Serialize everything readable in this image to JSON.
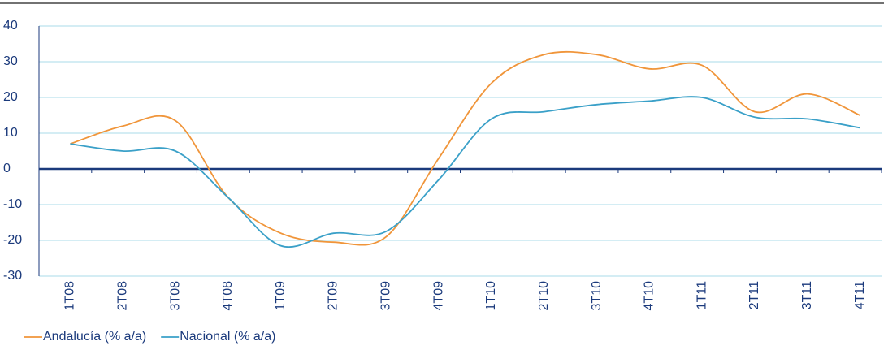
{
  "chart_data": {
    "type": "line",
    "categories": [
      "1T08",
      "2T08",
      "3T08",
      "4T08",
      "1T09",
      "2T09",
      "3T09",
      "4T09",
      "1T10",
      "2T10",
      "3T10",
      "4T10",
      "1T11",
      "2T11",
      "3T11",
      "4T11"
    ],
    "series": [
      {
        "name": "Andalucía (% a/a)",
        "color": "#f0953a",
        "values": [
          7,
          12,
          13.5,
          -8,
          -18,
          -20.5,
          -19,
          3,
          24,
          32,
          32,
          28,
          29,
          16,
          21,
          15
        ]
      },
      {
        "name": "Nacional (% a/a)",
        "color": "#3aa0c8",
        "values": [
          7,
          5,
          5,
          -8,
          -21.5,
          -18,
          -17.5,
          -3,
          14,
          16,
          18,
          19,
          20,
          14.5,
          14,
          11.5
        ]
      }
    ],
    "ylim": [
      -30,
      40
    ],
    "yticks": [
      -30,
      -20,
      -10,
      0,
      10,
      20,
      30,
      40
    ],
    "grid": true
  }
}
